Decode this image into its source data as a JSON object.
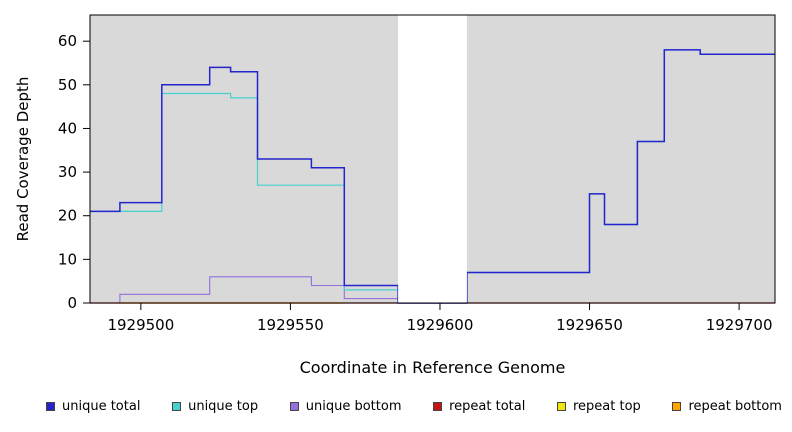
{
  "chart_data": {
    "type": "line",
    "subtype": "step",
    "title": "",
    "xlabel": "Coordinate in Reference Genome",
    "ylabel": "Read Coverage Depth",
    "xlim": [
      1929483,
      1929712
    ],
    "ylim": [
      0,
      66
    ],
    "x_ticks": [
      1929500,
      1929550,
      1929600,
      1929650,
      1929700
    ],
    "y_ticks": [
      0,
      10,
      20,
      30,
      40,
      50,
      60
    ],
    "grid": false,
    "plot_background": "#D9D9D9",
    "masked_region": {
      "start": 1929586,
      "end": 1929609,
      "color": "#FFFFFF"
    },
    "series": [
      {
        "name": "repeat top",
        "color": "#F2E50B",
        "width": 1,
        "steps": [
          [
            1929483,
            0
          ]
        ],
        "end": 1929712
      },
      {
        "name": "repeat total",
        "color": "#C41414",
        "width": 1.2,
        "steps": [
          [
            1929483,
            0
          ]
        ],
        "end": 1929712
      },
      {
        "name": "repeat bottom",
        "color": "#FFA500",
        "width": 1.2,
        "steps": [
          [
            1929492,
            0
          ]
        ],
        "end": 1929568
      },
      {
        "name": "unique bottom",
        "color": "#9370DB",
        "width": 1.1,
        "steps": [
          [
            1929483,
            0
          ],
          [
            1929493,
            2
          ],
          [
            1929523,
            6
          ],
          [
            1929557,
            4
          ],
          [
            1929568,
            1
          ],
          [
            1929586,
            0
          ]
        ],
        "end": 1929609
      },
      {
        "name": "unique top",
        "color": "#45D2CF",
        "width": 1.2,
        "steps": [
          [
            1929483,
            21
          ],
          [
            1929507,
            48
          ],
          [
            1929530,
            47
          ],
          [
            1929539,
            27
          ],
          [
            1929568,
            3
          ],
          [
            1929586,
            0
          ],
          [
            1929609,
            7
          ],
          [
            1929650,
            25
          ],
          [
            1929655,
            18
          ],
          [
            1929666,
            37
          ],
          [
            1929675,
            58
          ],
          [
            1929687,
            57
          ]
        ],
        "end": 1929712
      },
      {
        "name": "unique total",
        "color": "#2424CC",
        "width": 1.5,
        "steps": [
          [
            1929483,
            21
          ],
          [
            1929493,
            23
          ],
          [
            1929507,
            50
          ],
          [
            1929523,
            54
          ],
          [
            1929530,
            53
          ],
          [
            1929539,
            33
          ],
          [
            1929557,
            31
          ],
          [
            1929568,
            4
          ],
          [
            1929586,
            0
          ],
          [
            1929609,
            7
          ],
          [
            1929650,
            25
          ],
          [
            1929655,
            18
          ],
          [
            1929666,
            37
          ],
          [
            1929675,
            58
          ],
          [
            1929687,
            57
          ]
        ],
        "end": 1929712
      }
    ],
    "legend": [
      {
        "label": "unique total",
        "color": "#2424CC"
      },
      {
        "label": "unique top",
        "color": "#45D2CF"
      },
      {
        "label": "unique bottom",
        "color": "#9370DB"
      },
      {
        "label": "repeat total",
        "color": "#C41414"
      },
      {
        "label": "repeat top",
        "color": "#F2E50B"
      },
      {
        "label": "repeat bottom",
        "color": "#FFA500"
      }
    ]
  }
}
